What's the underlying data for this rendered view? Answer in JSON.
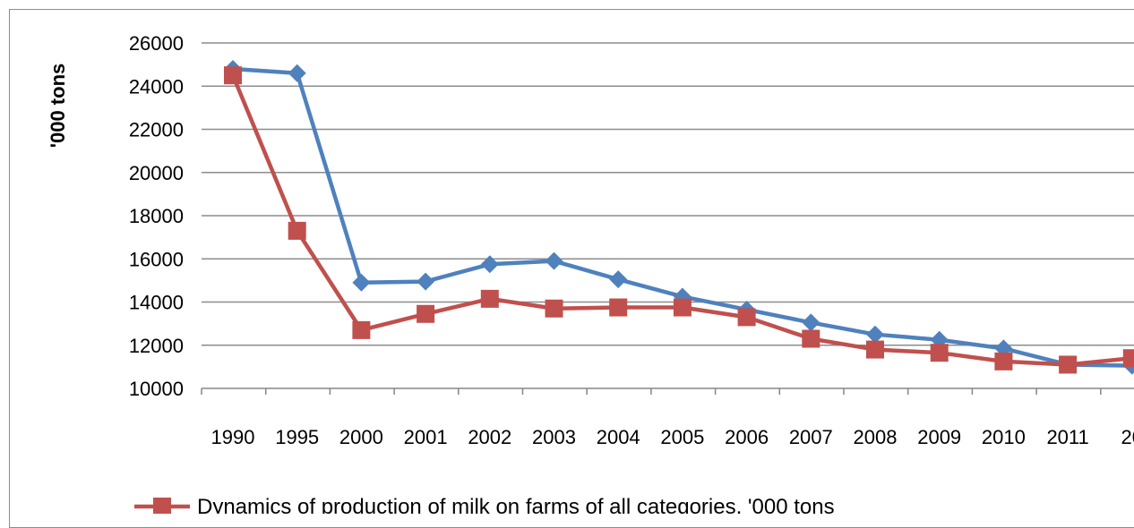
{
  "chart_data": {
    "type": "line",
    "ylabel": "'000 tons",
    "categories": [
      "1990",
      "1995",
      "2000",
      "2001",
      "2002",
      "2003",
      "2004",
      "2005",
      "2006",
      "2007",
      "2008",
      "2009",
      "2010",
      "2011",
      "20"
    ],
    "ylim": [
      10000,
      26000
    ],
    "yticks": [
      10000,
      12000,
      14000,
      16000,
      18000,
      20000,
      22000,
      24000,
      26000
    ],
    "yticks_labels": [
      "10000",
      "12000",
      "14000",
      "16000",
      "18000",
      "20000",
      "22000",
      "24000",
      "26000"
    ],
    "grid": true,
    "legend_position": "bottom",
    "series": [
      {
        "name": "Dynamics of production of milk on farms of all categories, '000 tons",
        "color": "#c0504d",
        "marker": "square",
        "values": [
          24500,
          17300,
          12700,
          13450,
          14150,
          13700,
          13750,
          13750,
          13300,
          12300,
          11800,
          11650,
          11250,
          11100,
          11400
        ]
      },
      {
        "color": "#4f81bd",
        "marker": "diamond",
        "values": [
          24800,
          24600,
          14900,
          14950,
          15750,
          15900,
          15050,
          14250,
          13650,
          13050,
          12500,
          12250,
          11850,
          11100,
          11050
        ]
      }
    ]
  }
}
